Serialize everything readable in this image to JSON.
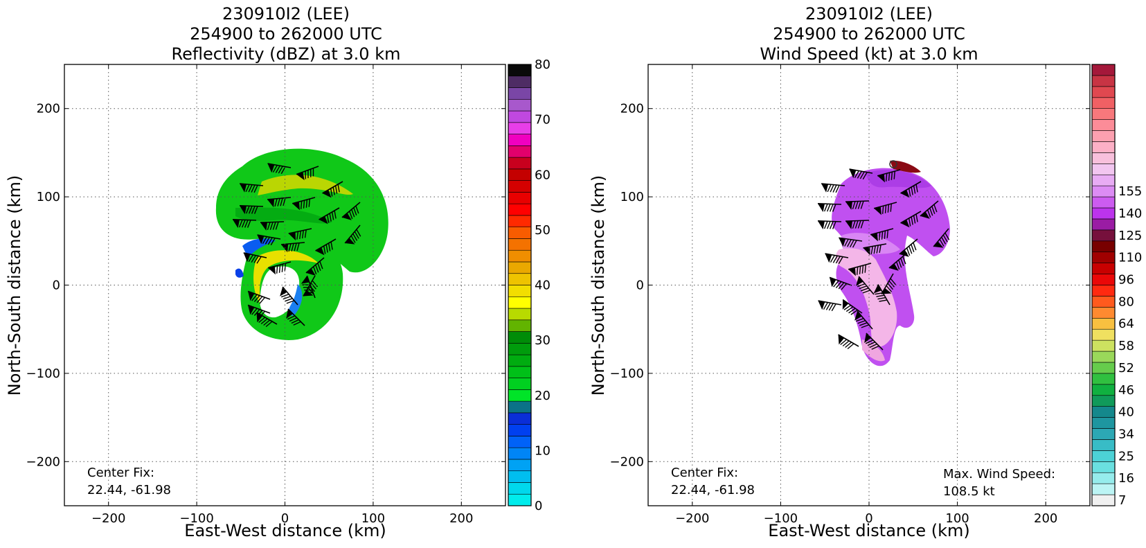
{
  "chart_data": [
    {
      "type": "heatmap",
      "title_lines": [
        "230910I2 (LEE)",
        "254900 to 262000 UTC",
        "Reflectivity (dBZ) at 3.0 km"
      ],
      "xlabel": "East-West distance (km)",
      "ylabel": "North-South distance (km)",
      "xlim": [
        -250,
        250
      ],
      "ylim": [
        -250,
        250
      ],
      "xticks": [
        -200,
        -100,
        0,
        100,
        200
      ],
      "yticks": [
        -200,
        -100,
        0,
        100,
        200
      ],
      "grid": true,
      "colorbar": {
        "range": [
          0,
          80
        ],
        "tick_values": [
          0,
          10,
          20,
          30,
          40,
          50,
          60,
          70,
          80
        ],
        "colors": [
          "#00ecec",
          "#00d8ec",
          "#00bef0",
          "#00a2f4",
          "#0085f6",
          "#0062f8",
          "#0040f0",
          "#0a2ed8",
          "#0b7288",
          "#00e428",
          "#00d020",
          "#00c018",
          "#00ac10",
          "#009c0c",
          "#008c08",
          "#62b400",
          "#b8da00",
          "#ffff00",
          "#f2de00",
          "#eec300",
          "#eaa800",
          "#f08e00",
          "#f47200",
          "#f85c00",
          "#ff2a00",
          "#ff0000",
          "#e80000",
          "#d40000",
          "#c40000",
          "#c8001e",
          "#e2006c",
          "#f000c0",
          "#e83ee8",
          "#c048e0",
          "#a858cc",
          "#7a46a6",
          "#4e2c64",
          "#0a0a0a"
        ]
      },
      "annotations": [
        {
          "label": "Center Fix:",
          "value": "22.44, -61.98"
        }
      ]
    },
    {
      "type": "heatmap",
      "title_lines": [
        "230910I2 (LEE)",
        "254900 to 262000 UTC",
        "Wind Speed (kt) at 3.0 km"
      ],
      "xlabel": "East-West distance (km)",
      "ylabel": "North-South distance (km)",
      "xlim": [
        -250,
        250
      ],
      "ylim": [
        -250,
        250
      ],
      "xticks": [
        -200,
        -100,
        0,
        100,
        200
      ],
      "yticks": [
        -200,
        -100,
        0,
        100,
        200
      ],
      "grid": true,
      "colorbar": {
        "tick_labels": [
          "7",
          "16",
          "25",
          "34",
          "40",
          "46",
          "52",
          "58",
          "64",
          "80",
          "96",
          "110",
          "125",
          "140",
          "155"
        ],
        "tick_steps": [
          0.5,
          2.5,
          4.5,
          6.5,
          8.5,
          10.5,
          12.5,
          14.5,
          16.5,
          18.5,
          20.5,
          22.5,
          24.5,
          26.5,
          28.5
        ],
        "colors": [
          "#f0f0f0",
          "#bcf4f4",
          "#96ecec",
          "#6ae0e0",
          "#4cd2d6",
          "#38bcc6",
          "#2ca8b4",
          "#1e96a0",
          "#14888c",
          "#109a5a",
          "#10b040",
          "#30c040",
          "#66cc4c",
          "#9ad85a",
          "#cde260",
          "#f0e060",
          "#f8c040",
          "#ff8a30",
          "#ff5a1e",
          "#ff2a10",
          "#ea0808",
          "#c80000",
          "#a00000",
          "#780000",
          "#76103c",
          "#9a1ca4",
          "#bc34ec",
          "#cc5cf0",
          "#dc8cf4",
          "#e8acf4",
          "#f2c6f0",
          "#f8c0dc",
          "#fcb0c6",
          "#fca0b0",
          "#fc8c98",
          "#f8787c",
          "#f06064",
          "#e04850",
          "#c83444",
          "#a4183a"
        ]
      },
      "annotations": [
        {
          "label": "Center Fix:",
          "value": "22.44, -61.98"
        },
        {
          "label": "Max. Wind Speed:",
          "value": "108.5 kt"
        }
      ]
    }
  ]
}
